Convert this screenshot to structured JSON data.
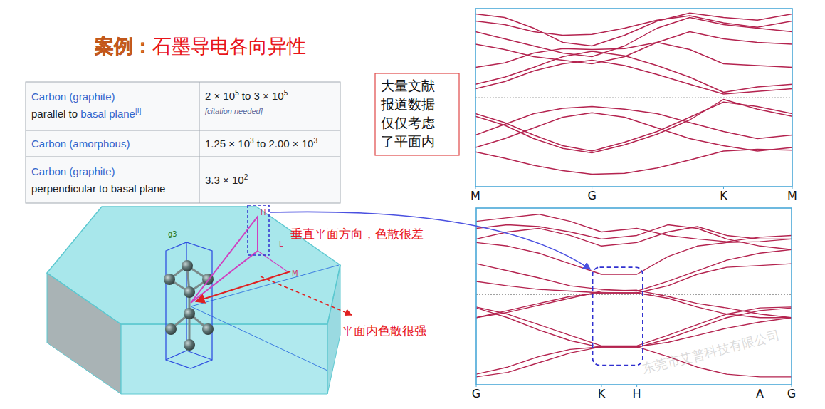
{
  "title": {
    "prefix": "案例：",
    "text": "石墨导电各向异性"
  },
  "table": {
    "rows": [
      {
        "material": "Carbon (graphite)",
        "detail": "parallel to ",
        "detail_link": "basal plane",
        "note": "[I]",
        "value": [
          {
            "t": "2 × 10",
            "sup": "5"
          },
          {
            "t": " to 3 × 10",
            "sup": "5"
          }
        ],
        "citation": "[citation needed]"
      },
      {
        "material": "Carbon (amorphous)",
        "value": [
          {
            "t": "1.25 × 10",
            "sup": "3"
          },
          {
            "t": " to 2.00 × 10",
            "sup": "3"
          }
        ]
      },
      {
        "material": "Carbon (graphite)",
        "detail": "perpendicular to basal plane",
        "value": [
          {
            "t": "3.3 × 10",
            "sup": "2"
          }
        ]
      }
    ]
  },
  "note_box": {
    "lines": [
      "大量文献",
      "报道数据",
      "仅仅考虑",
      "了平面内"
    ]
  },
  "diagram": {
    "point_labels": [
      "H",
      "g3",
      "L",
      "M"
    ],
    "annotations": {
      "perpendicular": "垂直平面方向，色散很差",
      "in_plane": "平面内色散很强"
    }
  },
  "watermark": "东莞市艾普科技有限公司",
  "chart_data": [
    {
      "type": "line",
      "color": "#b4234f",
      "tick_labels": "x",
      "x": [
        0,
        0.25,
        0.5,
        0.75,
        1.0,
        1.28,
        1.56,
        1.84,
        2.13,
        2.42,
        2.72
      ],
      "xlim": [
        0,
        2.72
      ],
      "xticks": [
        {
          "value": 0,
          "label": "M"
        },
        {
          "value": 1.0,
          "label": "G"
        },
        {
          "value": 2.13,
          "label": "K"
        },
        {
          "value": 2.72,
          "label": "M"
        }
      ],
      "ylim": [
        -10,
        10
      ],
      "fermi_level": 0,
      "series": [
        {
          "values": [
            -6.1,
            -6.8,
            -7.6,
            -8.2,
            -8.6,
            -8.5,
            -7.9,
            -7.0,
            -6.0,
            -5.8,
            -5.9
          ]
        },
        {
          "values": [
            -5.6,
            -4.6,
            -3.4,
            -2.2,
            -1.7,
            -2.2,
            -3.4,
            -4.6,
            -5.4,
            -6.0,
            -5.6
          ]
        },
        {
          "values": [
            -4.2,
            -3.0,
            -1.8,
            -1.2,
            -1.0,
            -1.3,
            -1.8,
            -2.8,
            -3.8,
            -4.6,
            -4.2
          ]
        },
        {
          "values": [
            -1.8,
            -2.8,
            -4.2,
            -5.4,
            -6.0,
            -5.0,
            -3.8,
            -2.2,
            -0.5,
            -1.0,
            -1.8
          ]
        },
        {
          "values": [
            -2.1,
            -3.1,
            -4.6,
            -5.7,
            -6.2,
            -5.3,
            -4.1,
            -2.5,
            -0.2,
            -1.3,
            -2.1
          ]
        },
        {
          "values": [
            1.0,
            1.8,
            3.0,
            3.8,
            4.2,
            3.6,
            2.6,
            1.5,
            0.4,
            0.7,
            1.0
          ]
        },
        {
          "values": [
            1.5,
            2.3,
            3.4,
            4.6,
            5.2,
            4.7,
            3.6,
            2.3,
            0.6,
            1.2,
            1.5
          ]
        },
        {
          "values": [
            3.4,
            3.9,
            5.0,
            5.5,
            5.4,
            5.5,
            6.2,
            5.4,
            3.8,
            3.6,
            3.4
          ]
        },
        {
          "values": [
            6.0,
            5.4,
            4.6,
            4.2,
            3.8,
            4.6,
            6.2,
            7.4,
            6.6,
            6.2,
            6.0
          ]
        },
        {
          "values": [
            7.4,
            6.6,
            5.8,
            5.0,
            4.6,
            5.8,
            7.8,
            9.0,
            8.2,
            7.8,
            7.4
          ]
        },
        {
          "values": [
            8.6,
            8.2,
            7.4,
            7.0,
            7.1,
            7.8,
            8.7,
            9.2,
            8.4,
            7.9,
            8.6
          ]
        },
        {
          "values": [
            9.4,
            9.0,
            7.8,
            6.2,
            5.8,
            7.0,
            8.6,
            9.5,
            9.0,
            8.7,
            9.4
          ]
        }
      ]
    },
    {
      "type": "line",
      "color": "#b4234f",
      "tick_labels": "x",
      "x": [
        0,
        0.425,
        0.85,
        1.275,
        1.7,
        2.18,
        2.6,
        3.0,
        3.4,
        3.85,
        4.28
      ],
      "xlim": [
        0,
        4.28
      ],
      "xticks": [
        {
          "value": 0,
          "label": "G"
        },
        {
          "value": 1.7,
          "label": "K"
        },
        {
          "value": 2.18,
          "label": "H"
        },
        {
          "value": 3.85,
          "label": "A"
        },
        {
          "value": 4.28,
          "label": "G"
        }
      ],
      "ylim": [
        -10.2,
        9.8
      ],
      "fermi_level": 0,
      "highlight": {
        "x": [
          1.58,
          2.26
        ],
        "y": [
          -8.0,
          3.1
        ]
      },
      "series": [
        {
          "values": [
            -9.3,
            -8.8,
            -7.7,
            -6.6,
            -5.9,
            -5.9,
            -7.0,
            -8.2,
            -9.0,
            -9.3,
            -9.3
          ]
        },
        {
          "values": [
            -9.0,
            -8.2,
            -7.0,
            -6.2,
            -5.9,
            -5.9,
            -5.4,
            -4.6,
            -3.8,
            -3.1,
            -2.6
          ]
        },
        {
          "values": [
            -1.4,
            -2.2,
            -3.4,
            -4.6,
            -5.8,
            -5.8,
            -4.6,
            -3.4,
            -2.2,
            -1.5,
            -1.4
          ]
        },
        {
          "values": [
            -1.5,
            -2.6,
            -4.0,
            -5.2,
            -6.0,
            -6.0,
            -5.0,
            -3.8,
            -2.6,
            -1.8,
            -1.5
          ]
        },
        {
          "values": [
            -2.6,
            -1.8,
            -1.0,
            -0.2,
            0.2,
            0.2,
            -0.4,
            -1.4,
            -2.2,
            -2.6,
            -2.6
          ]
        },
        {
          "values": [
            -2.6,
            -2.0,
            -1.2,
            -0.4,
            0.4,
            0.5,
            -0.2,
            -1.0,
            -1.5,
            -2.2,
            -2.6
          ]
        },
        {
          "values": [
            1.5,
            1.0,
            0.6,
            0.4,
            0.2,
            0.2,
            1.0,
            2.3,
            3.1,
            3.3,
            3.5
          ]
        },
        {
          "values": [
            3.5,
            2.7,
            1.9,
            1.0,
            0.6,
            0.4,
            1.5,
            2.7,
            3.9,
            4.7,
            5.1
          ]
        },
        {
          "values": [
            5.9,
            5.5,
            4.7,
            3.5,
            2.3,
            2.3,
            4.3,
            5.5,
            5.9,
            6.0,
            6.3
          ]
        },
        {
          "values": [
            6.3,
            7.1,
            7.5,
            6.7,
            5.5,
            5.9,
            7.1,
            7.7,
            6.7,
            6.3,
            6.3
          ]
        },
        {
          "values": [
            8.3,
            8.7,
            9.1,
            8.3,
            7.1,
            7.5,
            6.7,
            6.3,
            6.0,
            6.5,
            6.7
          ]
        },
        {
          "values": [
            7.5,
            7.9,
            7.7,
            7.1,
            6.3,
            6.7,
            7.9,
            7.5,
            6.3,
            5.5,
            5.1
          ]
        }
      ]
    }
  ]
}
